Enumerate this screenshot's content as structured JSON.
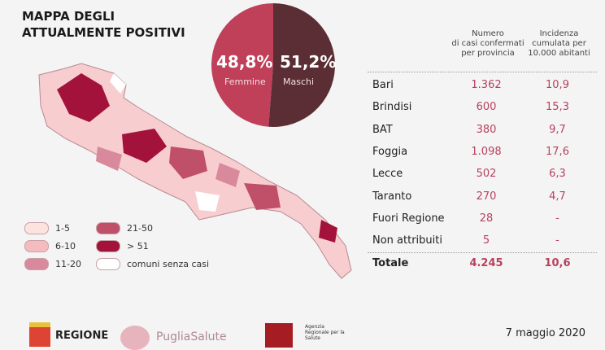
{
  "title": [
    "MAPPA DEGLI",
    "ATTUALMENTE POSITIVI"
  ],
  "chart_data": [
    {
      "type": "pie",
      "slices": [
        {
          "label": "Femmine",
          "value": 48.8,
          "display": "48,8%",
          "color": "#c0405a"
        },
        {
          "label": "Maschi",
          "value": 51.2,
          "display": "51,2%",
          "color": "#5a2e34"
        }
      ]
    },
    {
      "type": "table",
      "columns": [
        "",
        "Numero di casi confermati per provincia",
        "Incidenza cumulata per 10.000 abitanti"
      ],
      "rows": [
        [
          "Bari",
          "1.362",
          "10,9"
        ],
        [
          "Brindisi",
          "600",
          "15,3"
        ],
        [
          "BAT",
          "380",
          "9,7"
        ],
        [
          "Foggia",
          "1.098",
          "17,6"
        ],
        [
          "Lecce",
          "502",
          "6,3"
        ],
        [
          "Taranto",
          "270",
          "4,7"
        ],
        [
          "Fuori Regione",
          "28",
          "-"
        ],
        [
          "Non attribuiti",
          "5",
          "-"
        ]
      ],
      "total": [
        "Totale",
        "4.245",
        "10,6"
      ]
    }
  ],
  "header": {
    "col1": [
      "Numero",
      "di casi confermati",
      "per provincia"
    ],
    "col2": [
      "Incidenza",
      "cumulata per",
      "10.000 abitanti"
    ]
  },
  "legend": [
    {
      "label": "1-5",
      "color": "#fde3de"
    },
    {
      "label": "6-10",
      "color": "#f5bcc0"
    },
    {
      "label": "11-20",
      "color": "#d88a9c"
    },
    {
      "label": "21-50",
      "color": "#c0506a"
    },
    {
      "label": "> 51",
      "color": "#a3123a"
    },
    {
      "label": "comuni senza casi",
      "color": "#ffffff"
    }
  ],
  "footer": {
    "logo1": "REGIONE",
    "logo2": "PugliaSalute",
    "logo3": "Agenzia Regionale per la Salute",
    "date": "7 maggio 2020"
  }
}
